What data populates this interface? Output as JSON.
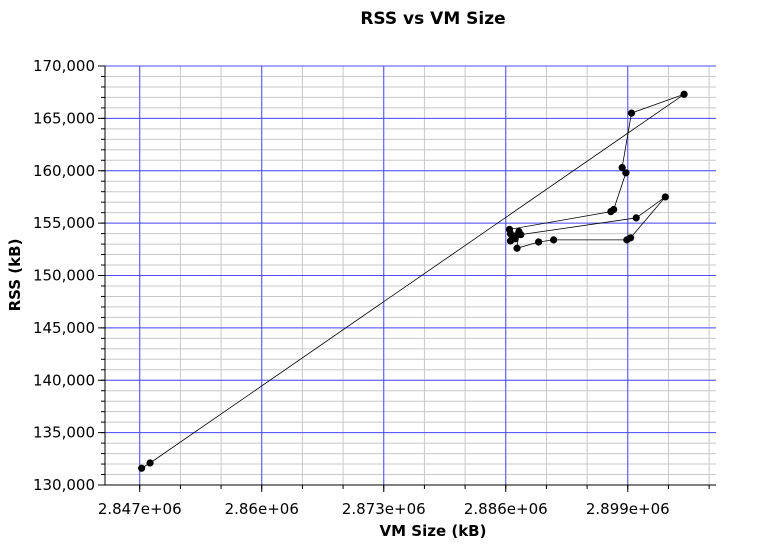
{
  "chart_data": {
    "type": "scatter",
    "title": "RSS vs VM Size",
    "xlabel": "VM Size (kB)",
    "ylabel": "RSS (kB)",
    "xlim": [
      2843300,
      2908400
    ],
    "ylim": [
      130000,
      170000
    ],
    "x_major_ticks": [
      2847000,
      2860000,
      2873000,
      2886000,
      2899000
    ],
    "x_tick_labels": [
      "2.847e+06",
      "2.86e+06",
      "2.873e+06",
      "2.886e+06",
      "2.899e+06"
    ],
    "y_major_ticks": [
      130000,
      135000,
      140000,
      145000,
      150000,
      155000,
      160000,
      165000,
      170000
    ],
    "y_tick_labels": [
      "130,000",
      "135,000",
      "140,000",
      "145,000",
      "150,000",
      "155,000",
      "160,000",
      "165,000",
      "170,000"
    ],
    "grid": true,
    "colors": {
      "major_grid": "#4d4dff",
      "minor_grid": "#c8c8c8",
      "series": "#000000"
    },
    "series": [
      {
        "connected": true,
        "points": [
          [
            2847200,
            131600
          ],
          [
            2848100,
            132100
          ],
          [
            2905000,
            167300
          ],
          [
            2899400,
            165500
          ],
          [
            2898400,
            160300
          ],
          [
            2898800,
            159800
          ],
          [
            2897500,
            156300
          ],
          [
            2897200,
            156100
          ],
          [
            2886400,
            154400
          ],
          [
            2886500,
            153300
          ],
          [
            2887100,
            153800
          ],
          [
            2887400,
            154200
          ],
          [
            2887200,
            152600
          ],
          [
            2889500,
            153200
          ],
          [
            2891100,
            153400
          ],
          [
            2898900,
            153400
          ],
          [
            2899300,
            153600
          ],
          [
            2903000,
            157500
          ],
          [
            2899900,
            155500
          ],
          [
            2887600,
            153900
          ],
          [
            2886700,
            153700
          ],
          [
            2887000,
            153500
          ],
          [
            2886500,
            154000
          ]
        ]
      }
    ]
  }
}
